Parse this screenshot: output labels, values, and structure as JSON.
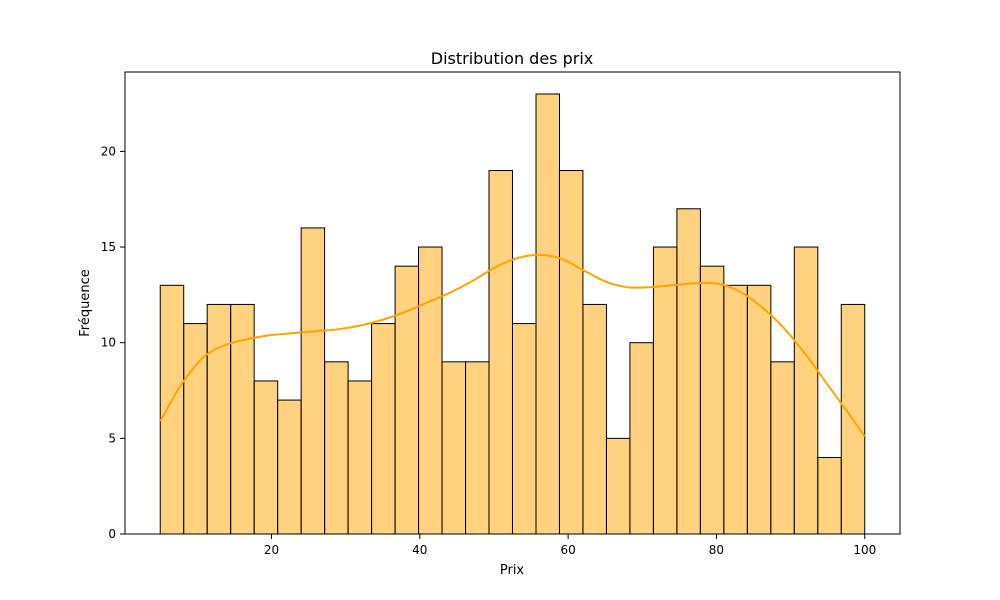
{
  "chart_data": {
    "type": "bar",
    "title": "Distribution des prix",
    "xlabel": "Prix",
    "ylabel": "Fréquence",
    "x_range": [
      5.0,
      100.0
    ],
    "bin_width": 3.1667,
    "bin_starts": [
      5.0,
      8.17,
      11.33,
      14.5,
      17.67,
      20.83,
      24.0,
      27.17,
      30.33,
      33.5,
      36.67,
      39.83,
      43.0,
      46.17,
      49.33,
      52.5,
      55.67,
      58.83,
      62.0,
      65.17,
      68.33,
      71.5,
      74.67,
      77.83,
      81.0,
      84.17,
      87.33,
      90.5,
      93.67,
      96.83
    ],
    "values": [
      13,
      11,
      12,
      12,
      8,
      7,
      16,
      9,
      8,
      11,
      14,
      15,
      9,
      9,
      19,
      11,
      23,
      19,
      12,
      5,
      10,
      15,
      17,
      14,
      13,
      13,
      9,
      15,
      4,
      12
    ],
    "kde": {
      "x": [
        5,
        8,
        11,
        14,
        17,
        20,
        23,
        26,
        29,
        32,
        35,
        38,
        41,
        44,
        47,
        50,
        53,
        56,
        59,
        62,
        65,
        68,
        71,
        74,
        77,
        80,
        83,
        86,
        89,
        92,
        95,
        98,
        100
      ],
      "y": [
        5.9,
        7.9,
        9.3,
        9.9,
        10.2,
        10.4,
        10.5,
        10.6,
        10.7,
        10.9,
        11.2,
        11.6,
        12.1,
        12.6,
        13.2,
        13.9,
        14.4,
        14.6,
        14.4,
        13.8,
        13.2,
        12.9,
        12.9,
        13.0,
        13.1,
        13.1,
        12.7,
        11.9,
        10.8,
        9.4,
        7.8,
        6.2,
        5.1
      ]
    },
    "xlim": [
      0.25,
      104.75
    ],
    "ylim": [
      0,
      24.15
    ],
    "xticks": [
      20,
      40,
      60,
      80,
      100
    ],
    "yticks": [
      0,
      5,
      10,
      15,
      20
    ],
    "colors": {
      "bar": "#ffa500",
      "kde": "#ffa500"
    },
    "grid": false,
    "legend": "none"
  }
}
